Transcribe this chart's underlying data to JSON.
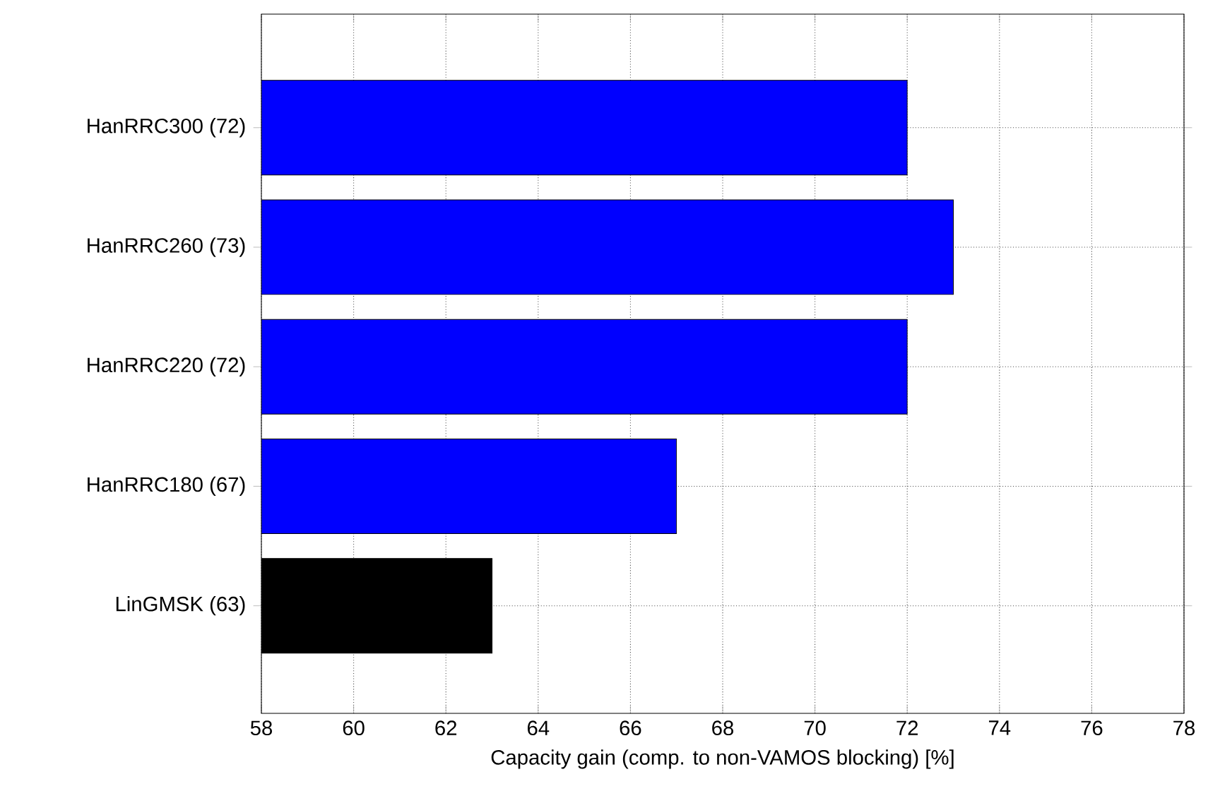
{
  "chart_data": {
    "type": "bar",
    "orientation": "horizontal",
    "xlabel": "Capacity gain (comp. to non-VAMOS blocking) [%]",
    "categories": [
      "HanRRC300 (72)",
      "HanRRC260 (73)",
      "HanRRC220 (72)",
      "HanRRC180 (67)",
      "LinGMSK (63)"
    ],
    "values": [
      72,
      73,
      72,
      67,
      63
    ],
    "colors": [
      "#0000ff",
      "#0000ff",
      "#0000ff",
      "#0000ff",
      "#000000"
    ],
    "xlim": [
      58,
      78
    ],
    "xticks": [
      58,
      60,
      62,
      64,
      66,
      68,
      70,
      72,
      74,
      76,
      78
    ],
    "grid": true
  }
}
